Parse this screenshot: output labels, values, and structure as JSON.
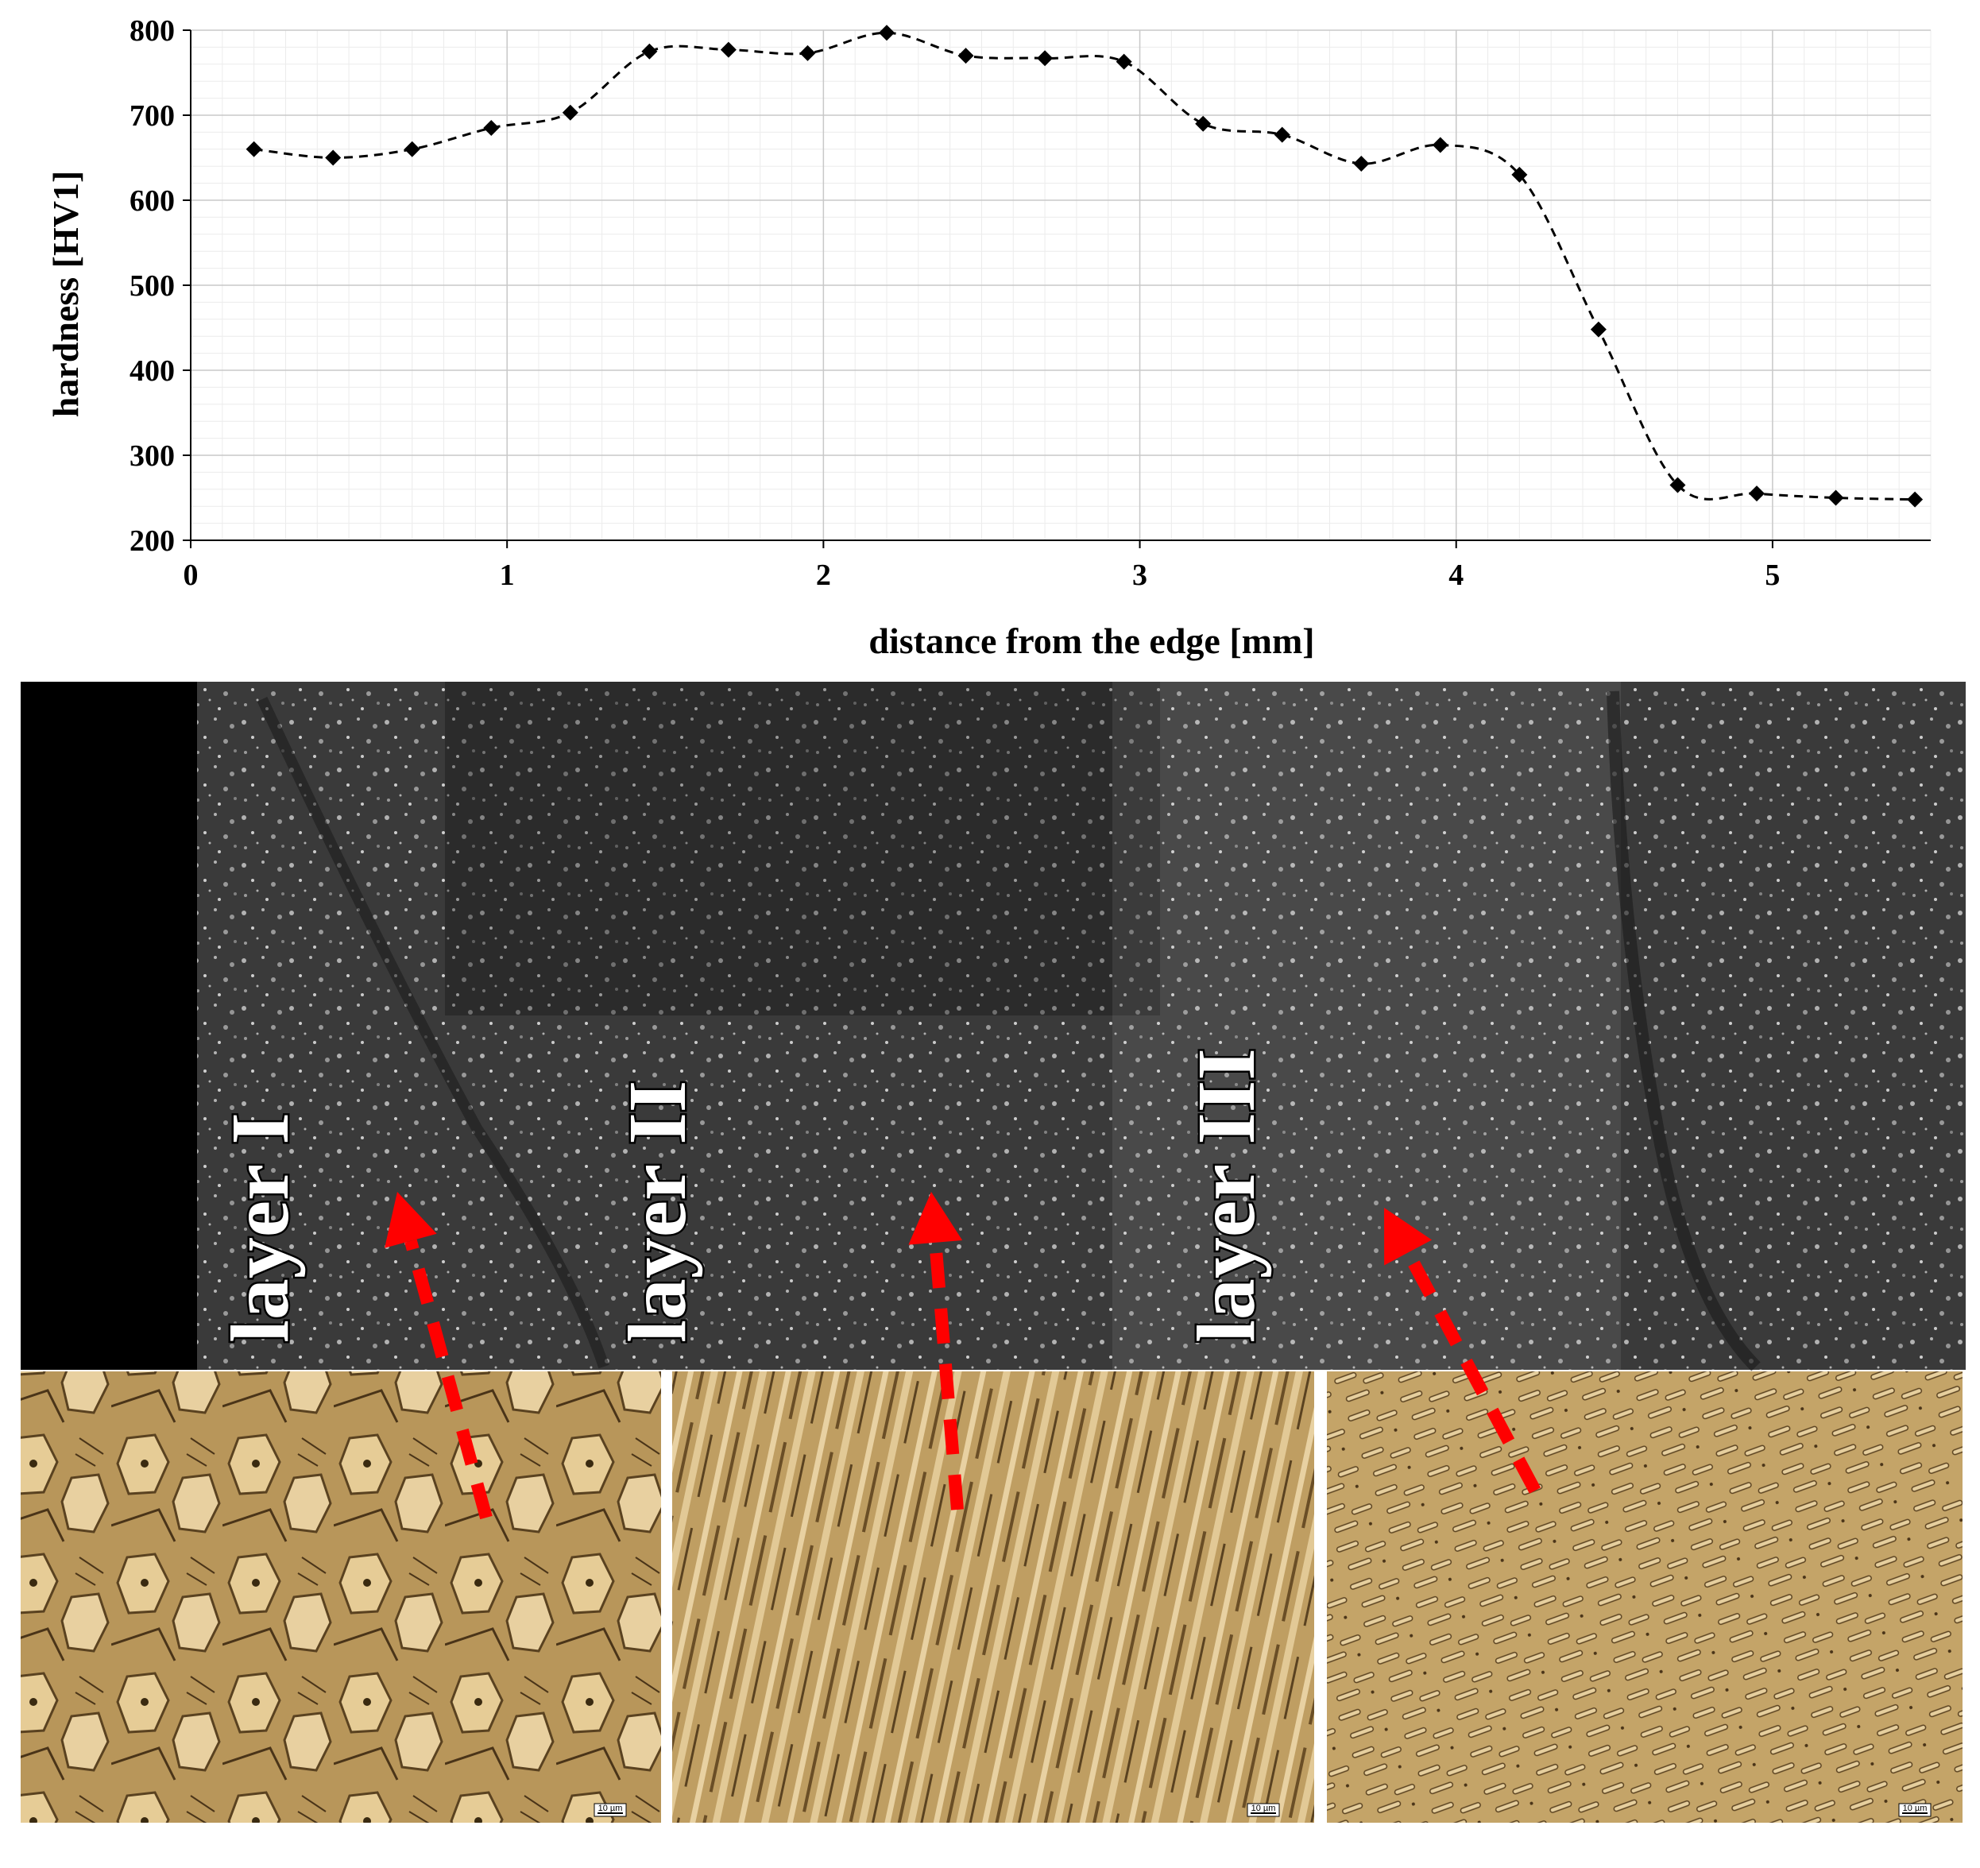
{
  "chart_data": {
    "type": "line",
    "title": "",
    "xlabel": "distance from the edge [mm]",
    "ylabel": "hardness [HV1]",
    "xlim": [
      0,
      5.5
    ],
    "ylim": [
      200,
      800
    ],
    "xticks": [
      "0",
      "1",
      "2",
      "3",
      "4",
      "5"
    ],
    "yticks": [
      "200",
      "300",
      "400",
      "500",
      "600",
      "700",
      "800"
    ],
    "grid": true,
    "line_style": "dashed",
    "marker": "diamond",
    "series": [
      {
        "x": [
          0.2,
          0.45,
          0.7,
          0.95,
          1.2,
          1.45,
          1.7,
          1.95,
          2.2,
          2.45,
          2.7,
          2.95,
          3.2,
          3.45,
          3.7,
          3.95,
          4.2,
          4.45,
          4.7,
          4.95,
          5.2,
          5.45
        ],
        "values": [
          660,
          650,
          660,
          685,
          703,
          775,
          777,
          773,
          797,
          770,
          767,
          763,
          690,
          677,
          643,
          665,
          630,
          448,
          265,
          255,
          250,
          248
        ]
      }
    ]
  },
  "micrograph": {
    "layer_labels": [
      "layer I",
      "layer II",
      "layer III"
    ],
    "scale_bar_label": "10 µm",
    "arrow_color": "#ff0000"
  }
}
